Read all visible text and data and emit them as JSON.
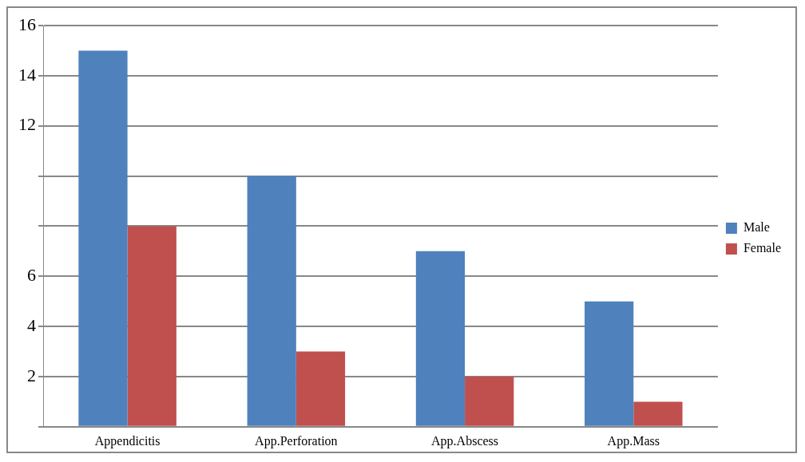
{
  "chart_data": {
    "type": "bar",
    "categories": [
      "Appendicitis",
      "App.Perforation",
      "App.Abscess",
      "App.Mass"
    ],
    "series": [
      {
        "name": "Male",
        "color": "#4f81bd",
        "values": [
          15,
          10,
          7,
          5
        ]
      },
      {
        "name": "Female",
        "color": "#c0504d",
        "values": [
          8,
          3,
          2,
          1
        ]
      }
    ],
    "ylim": [
      0,
      16
    ],
    "yticks": [
      {
        "value": 0,
        "label": null
      },
      2,
      4,
      6,
      {
        "value": 8,
        "label": null
      },
      {
        "value": 10,
        "label": null
      },
      12,
      14,
      16
    ],
    "grid": "y",
    "legend": "right"
  }
}
